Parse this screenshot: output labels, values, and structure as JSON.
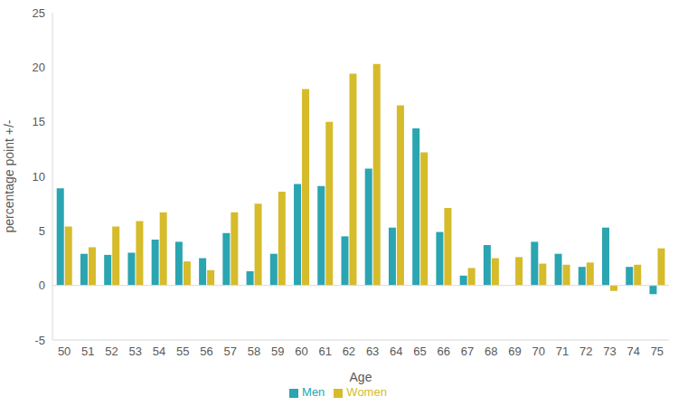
{
  "chart_data": {
    "type": "bar",
    "x_label": "Age",
    "y_label": "percentage point +/-",
    "categories": [
      "50",
      "51",
      "52",
      "53",
      "54",
      "55",
      "56",
      "57",
      "58",
      "59",
      "60",
      "61",
      "62",
      "63",
      "64",
      "65",
      "66",
      "67",
      "68",
      "69",
      "70",
      "71",
      "72",
      "73",
      "74",
      "75"
    ],
    "series": [
      {
        "name": "Men",
        "color": "#2aa5b1",
        "values": [
          8.9,
          2.9,
          2.8,
          3.0,
          4.2,
          4.0,
          2.5,
          4.8,
          1.3,
          2.9,
          9.3,
          9.1,
          4.5,
          10.7,
          5.3,
          14.4,
          4.9,
          0.9,
          3.7,
          0,
          4.0,
          2.9,
          1.7,
          5.3,
          1.7,
          -0.8
        ]
      },
      {
        "name": "Women",
        "color": "#d6bb2b",
        "values": [
          5.4,
          3.5,
          5.4,
          5.9,
          6.7,
          2.2,
          1.4,
          6.7,
          7.5,
          8.6,
          18.0,
          15.0,
          19.4,
          20.3,
          16.5,
          12.2,
          7.1,
          1.6,
          2.5,
          2.6,
          2.0,
          1.9,
          2.1,
          -0.5,
          1.9,
          3.4
        ]
      }
    ],
    "ylim": [
      -5,
      25
    ],
    "yticks": [
      -5,
      0,
      5,
      10,
      15,
      20,
      25
    ],
    "grid": false,
    "legend": "bottom"
  }
}
